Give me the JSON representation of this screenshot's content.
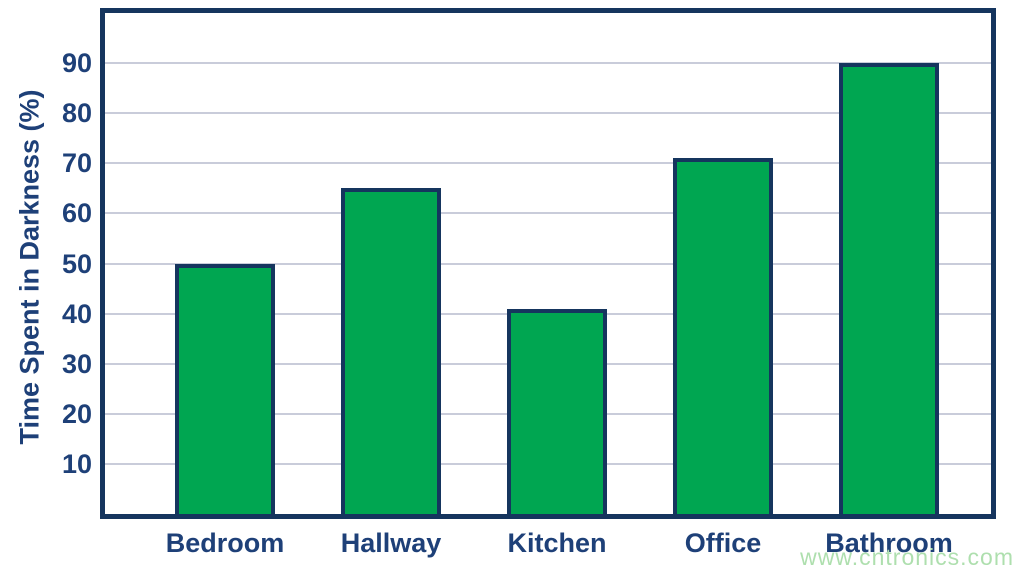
{
  "watermark": "www.cntronics.com",
  "chart_data": {
    "type": "bar",
    "title": "",
    "xlabel": "",
    "ylabel": "Time Spent in Darkness (%)",
    "categories": [
      "Bedroom",
      "Hallway",
      "Kitchen",
      "Office",
      "Bathroom"
    ],
    "values": [
      50,
      65,
      41,
      71,
      90
    ],
    "ylim": [
      0,
      100
    ],
    "yticks": [
      10,
      20,
      30,
      40,
      50,
      60,
      70,
      80,
      90
    ],
    "grid": "horizontal",
    "legend_position": "none",
    "colors": {
      "bar_fill": "#00A651",
      "bar_border": "#15355E",
      "plot_border": "#15355E",
      "gridline": "#C9CCDA",
      "label_text": "#1E4078",
      "watermark_text": "#AEDFAE",
      "background": "#FFFFFF"
    }
  }
}
